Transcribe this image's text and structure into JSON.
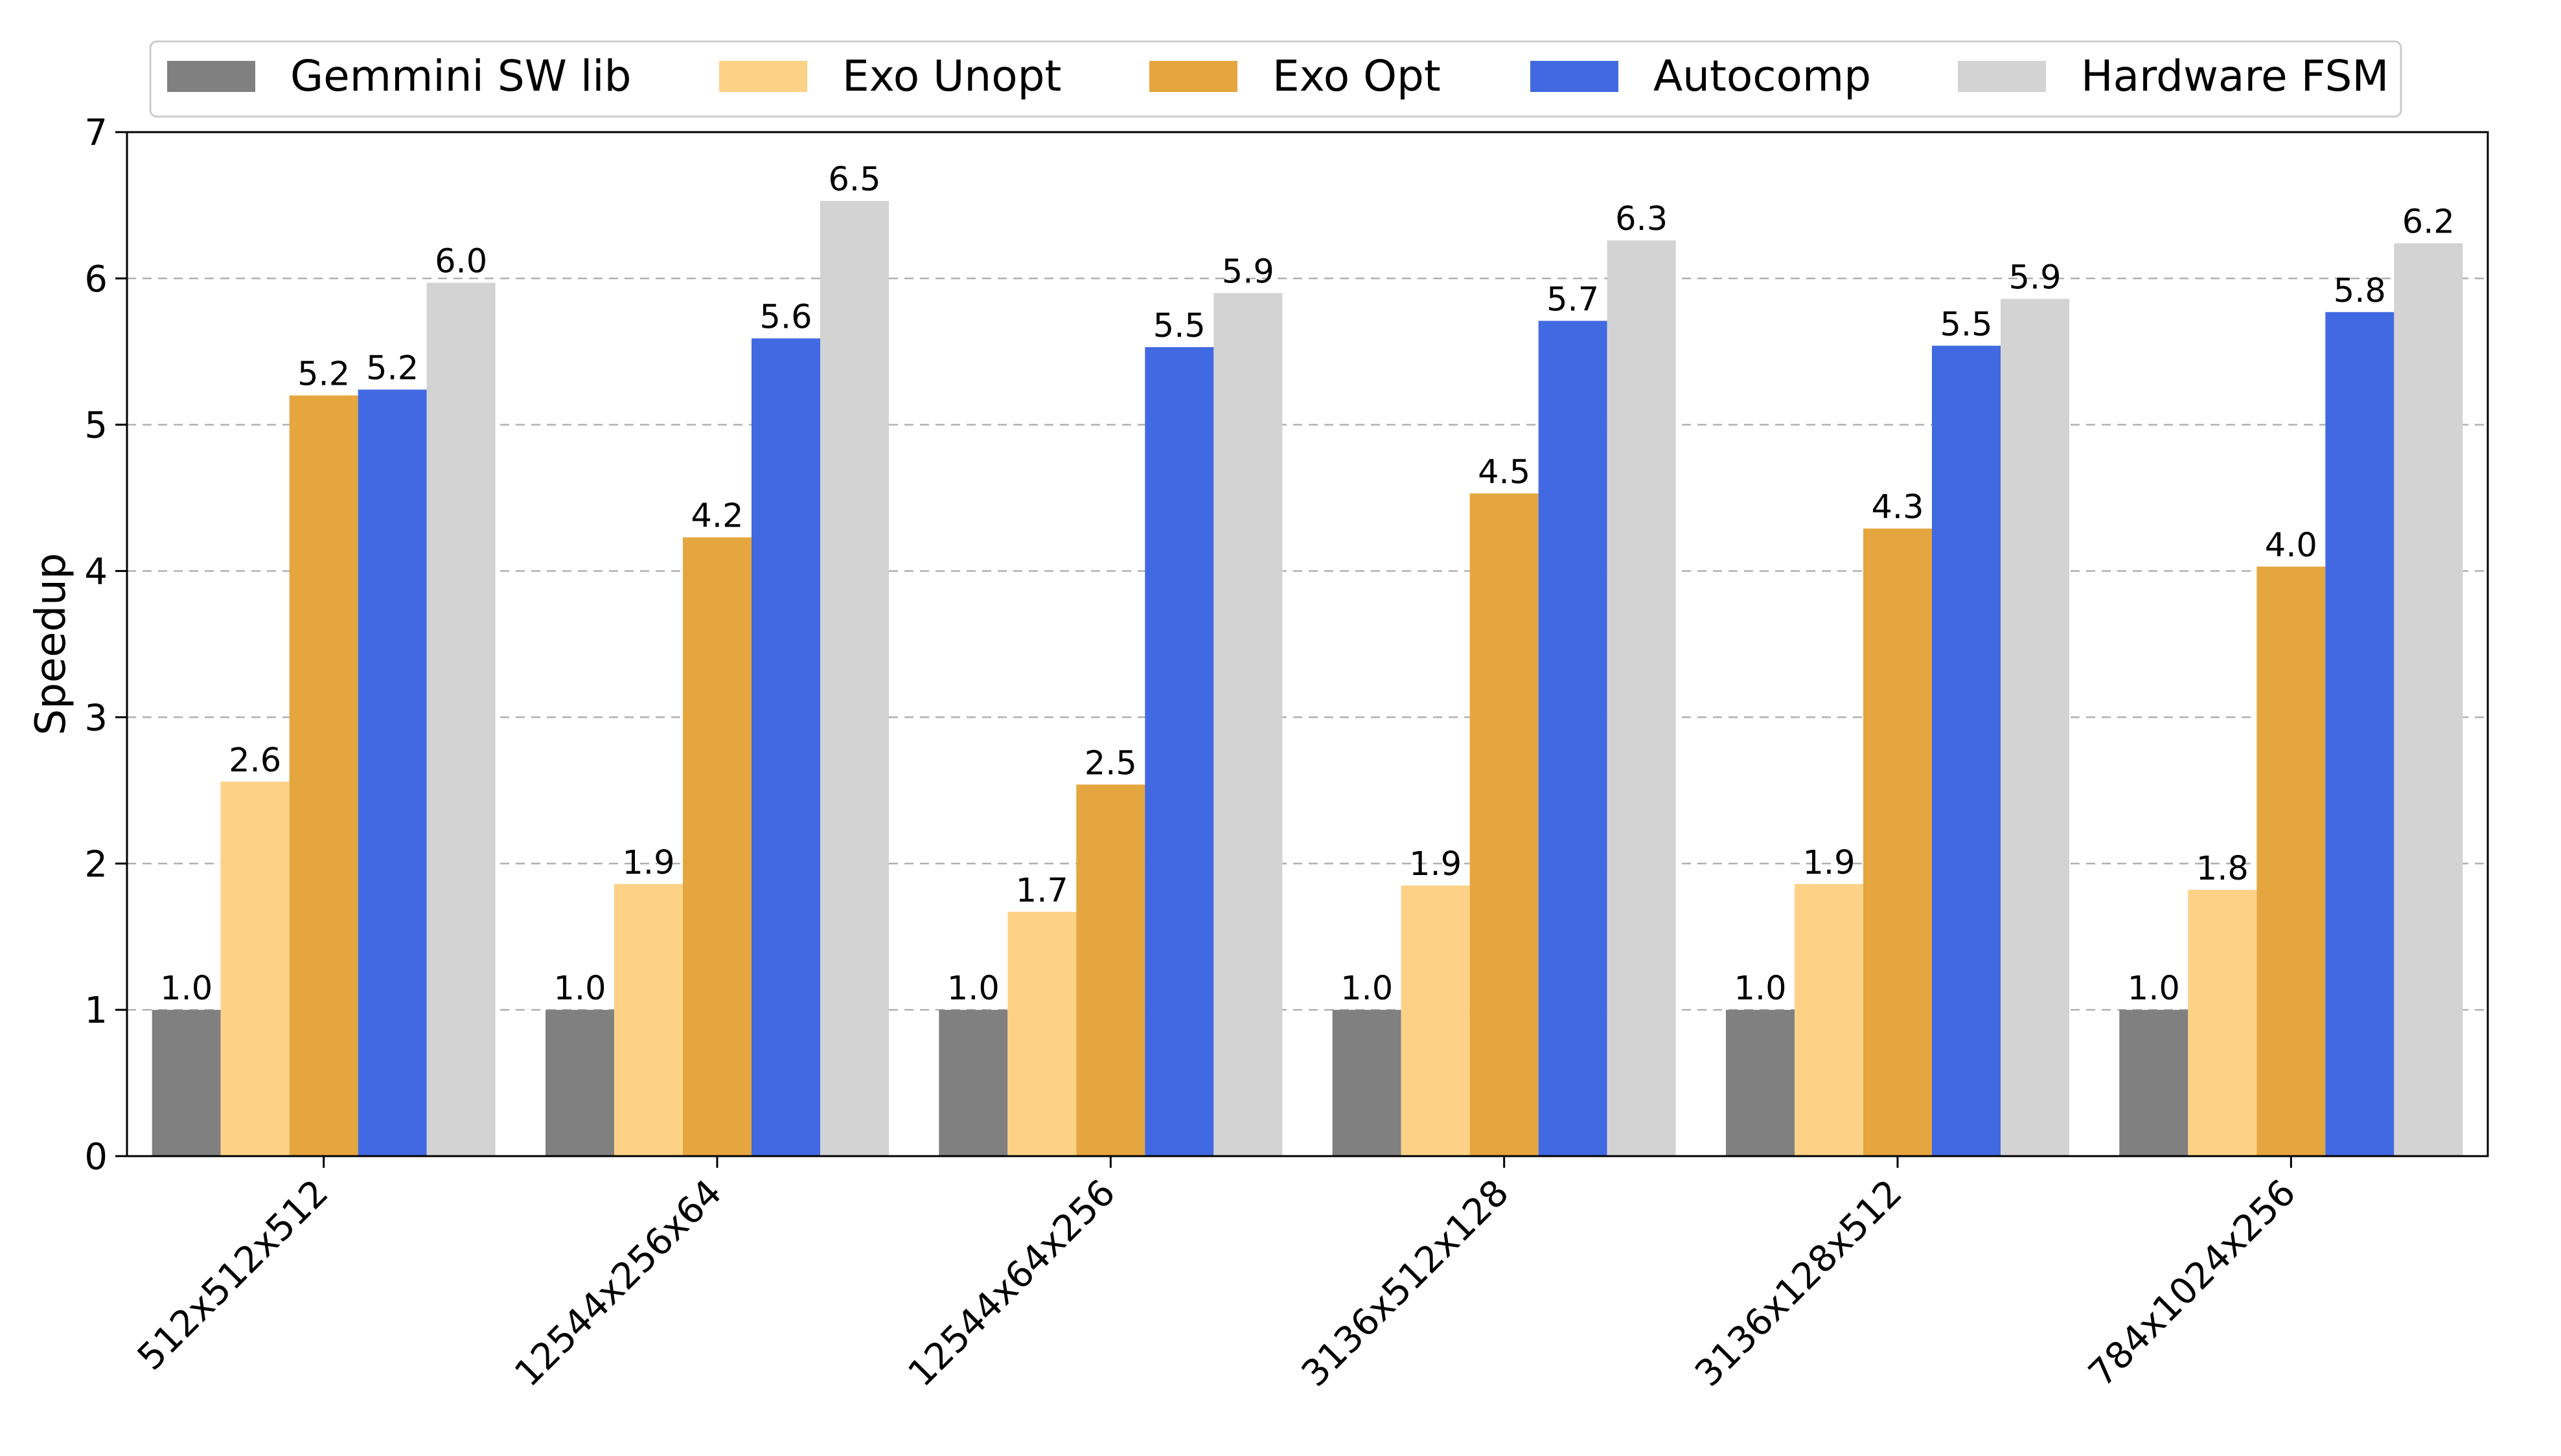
{
  "chart_data": {
    "type": "bar",
    "title": "",
    "xlabel": "",
    "ylabel": "Speedup",
    "ylim": [
      0,
      7
    ],
    "yticks": [
      "0",
      "1",
      "2",
      "3",
      "4",
      "5",
      "6",
      "7"
    ],
    "grid": "horizontal dashed",
    "legend_position": "top",
    "categories": [
      "512x512x512",
      "12544x256x64",
      "12544x64x256",
      "3136x512x128",
      "3136x128x512",
      "784x1024x256"
    ],
    "series": [
      {
        "name": "Gemmini SW lib",
        "color": "#808080",
        "values": [
          1.0,
          1.0,
          1.0,
          1.0,
          1.0,
          1.0
        ],
        "labels": [
          "1.0",
          "1.0",
          "1.0",
          "1.0",
          "1.0",
          "1.0"
        ]
      },
      {
        "name": "Exo Unopt",
        "color": "#fdd287",
        "values": [
          2.56,
          1.86,
          1.67,
          1.85,
          1.86,
          1.82
        ],
        "labels": [
          "2.6",
          "1.9",
          "1.7",
          "1.9",
          "1.9",
          "1.8"
        ]
      },
      {
        "name": "Exo Opt",
        "color": "#e5a63f",
        "values": [
          5.2,
          4.23,
          2.54,
          4.53,
          4.29,
          4.03
        ],
        "labels": [
          "5.2",
          "4.2",
          "2.5",
          "4.5",
          "4.3",
          "4.0"
        ]
      },
      {
        "name": "Autocomp",
        "color": "#4169e1",
        "values": [
          5.24,
          5.59,
          5.53,
          5.71,
          5.54,
          5.77
        ],
        "labels": [
          "5.2",
          "5.6",
          "5.5",
          "5.7",
          "5.5",
          "5.8"
        ]
      },
      {
        "name": "Hardware FSM",
        "color": "#d3d3d3",
        "values": [
          5.97,
          6.53,
          5.9,
          6.26,
          5.86,
          6.24
        ],
        "labels": [
          "6.0",
          "6.5",
          "5.9",
          "6.3",
          "5.9",
          "6.2"
        ]
      }
    ]
  }
}
